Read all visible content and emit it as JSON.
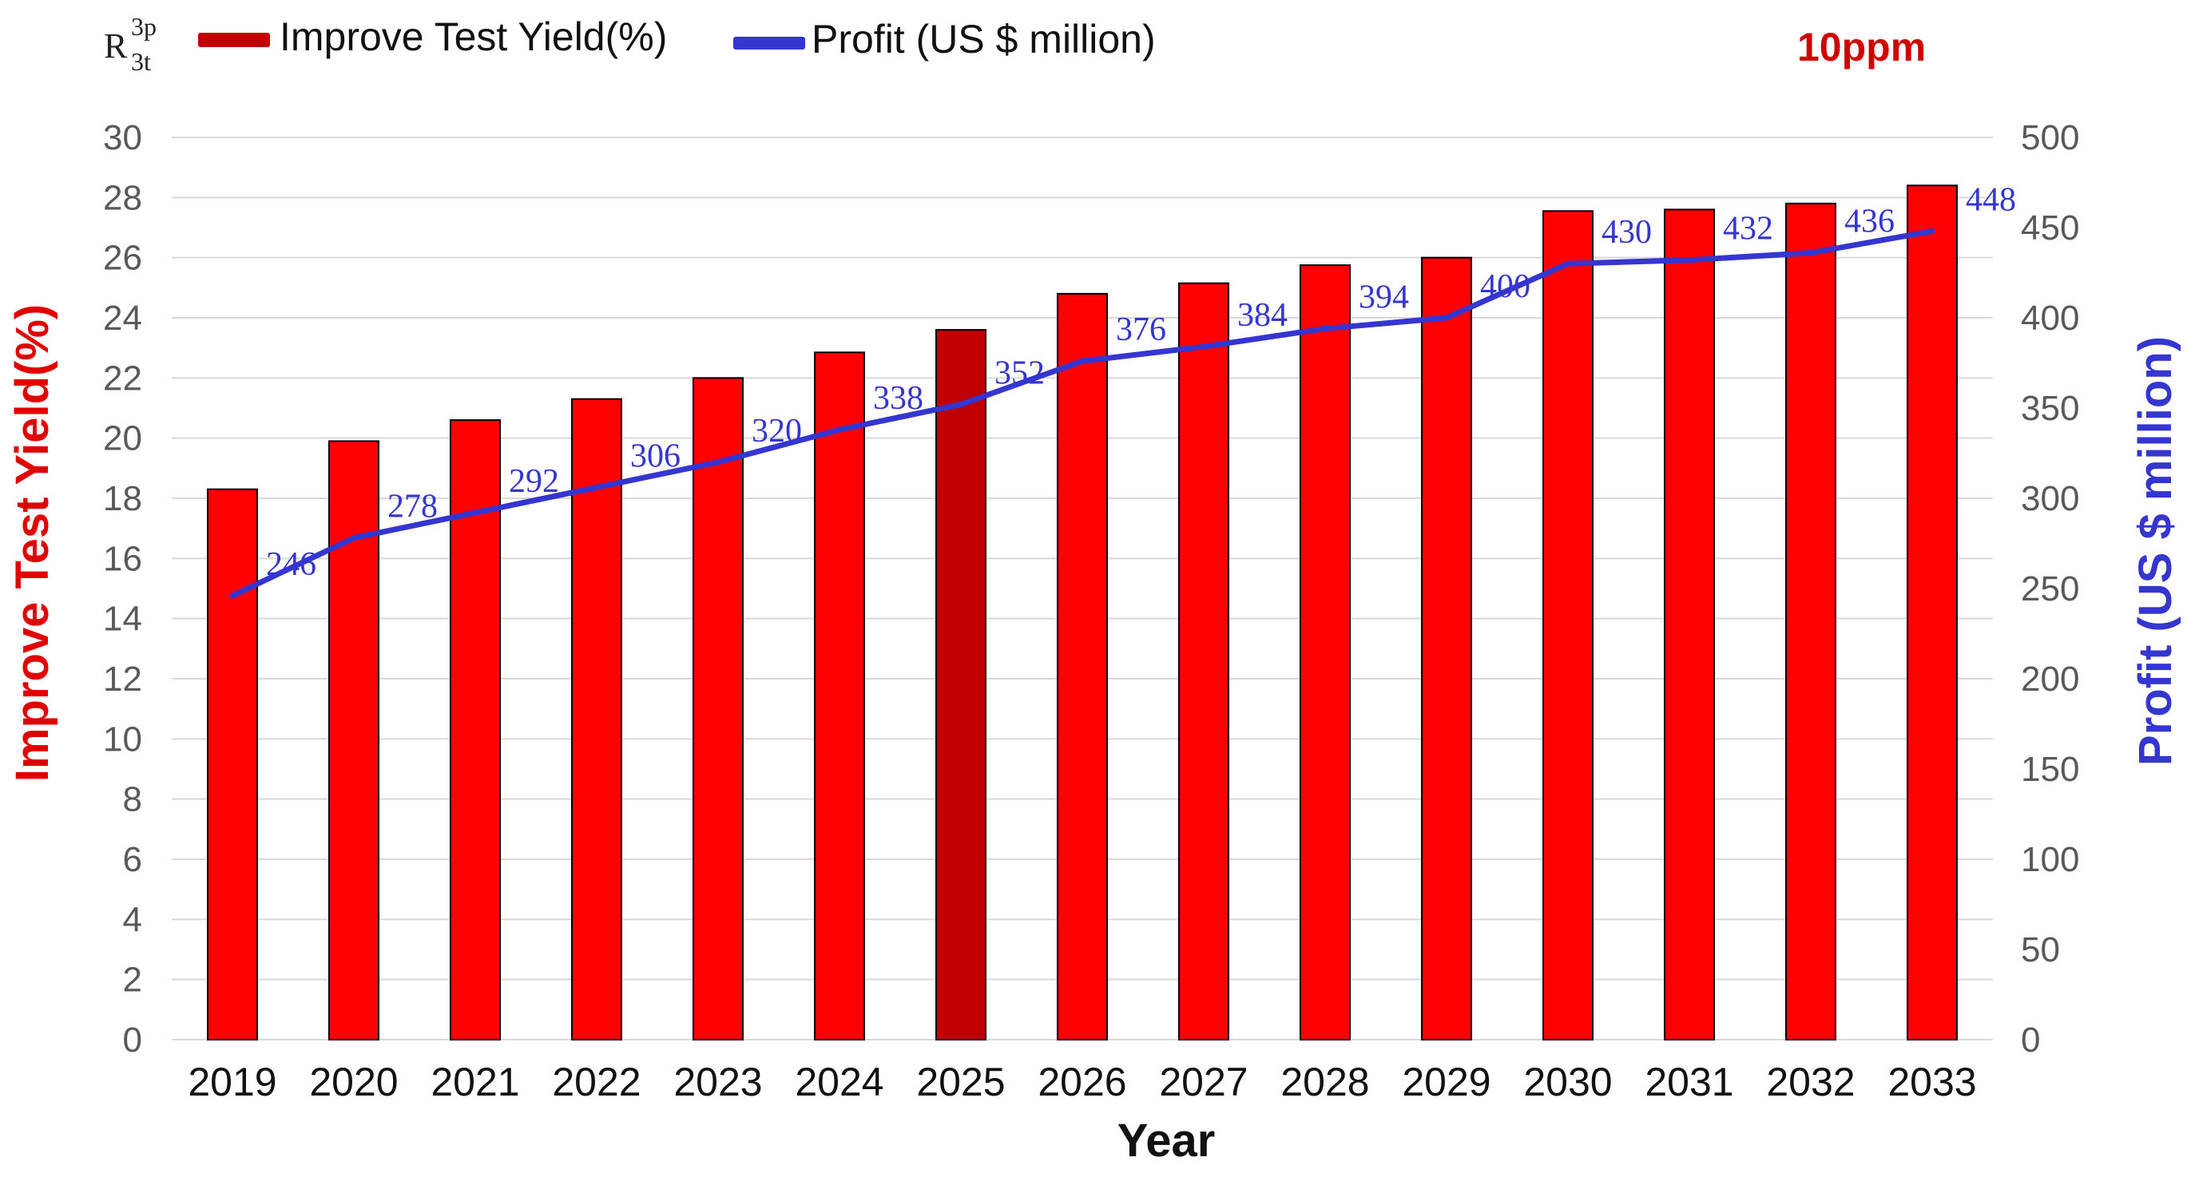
{
  "chart_data": {
    "type": "bar",
    "title": "",
    "annotation": "10ppm",
    "legend_prefix": {
      "base": "R",
      "sup": "3p",
      "sub": "3t"
    },
    "legend_position": "top-left",
    "categories": [
      "2019",
      "2020",
      "2021",
      "2022",
      "2023",
      "2024",
      "2025",
      "2026",
      "2027",
      "2028",
      "2029",
      "2030",
      "2031",
      "2032",
      "2033"
    ],
    "series": [
      {
        "name": "Improve Test Yield(%)",
        "type": "bar",
        "axis": "left",
        "values": [
          18.3,
          19.9,
          20.6,
          21.3,
          22.0,
          22.85,
          23.6,
          24.8,
          25.15,
          25.75,
          26.0,
          27.55,
          27.6,
          27.8,
          28.4
        ],
        "highlight_index": 6
      },
      {
        "name": "Profit (US $ million)",
        "type": "line",
        "axis": "right",
        "values": [
          246,
          278,
          292,
          306,
          320,
          338,
          352,
          376,
          384,
          394,
          400,
          430,
          432,
          436,
          448
        ],
        "labels": [
          "246",
          "278",
          "292",
          "306",
          "320",
          "338",
          "352",
          "376",
          "384",
          "394",
          "400",
          "430",
          "432",
          "436",
          "448"
        ]
      }
    ],
    "xlabel": "Year",
    "ylabel_left": "Improve Test Yield(%)",
    "ylabel_right": "Profit (US $ million)",
    "ylim_left": [
      0,
      30
    ],
    "ylim_right": [
      0,
      500
    ],
    "yticks_left": [
      "0",
      "2",
      "4",
      "6",
      "8",
      "10",
      "12",
      "14",
      "16",
      "18",
      "20",
      "22",
      "24",
      "26",
      "28",
      "30"
    ],
    "yticks_right": [
      "0",
      "50",
      "100",
      "150",
      "200",
      "250",
      "300",
      "350",
      "400",
      "450",
      "500"
    ],
    "grid": true,
    "colors": {
      "bar": "#ff0000",
      "bar_highlight": "#c00000",
      "bar_edge": "#000000",
      "line": "#3535d0",
      "left_axis_label": "#e00000",
      "right_axis_label": "#3535d0",
      "annotation": "#d00000",
      "tick_text": "#595959",
      "grid": "#d9d9d9"
    }
  }
}
